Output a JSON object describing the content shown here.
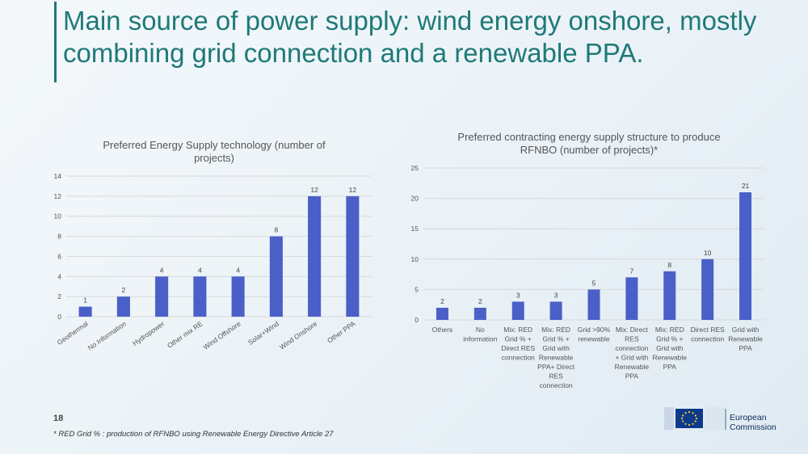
{
  "slide": {
    "title": "Main source of power supply: wind energy onshore, mostly combining grid connection and a renewable PPA.",
    "number": "18",
    "footnote": "* RED Grid % : production of RFNBO using Renewable Energy Directive Article 27",
    "logo": {
      "line1": "European",
      "line2": "Commission"
    }
  },
  "colors": {
    "bar": "#4a5fc7",
    "title": "#1e7a78",
    "grid": "#d8d8d8"
  },
  "chart_data": [
    {
      "type": "bar",
      "title_lines": [
        "Preferred Energy Supply technology (number of",
        "projects)"
      ],
      "categories": [
        "Geothermal",
        "No Information",
        "Hydropower",
        "Other mix RE",
        "Wind Offshore",
        "Solar+Wind",
        "Wind Onshore",
        "Other PPA"
      ],
      "values": [
        1,
        2,
        4,
        4,
        4,
        8,
        12,
        12
      ],
      "ylim": [
        0,
        14
      ],
      "yticks": [
        0,
        2,
        4,
        6,
        8,
        10,
        12,
        14
      ],
      "grid": true
    },
    {
      "type": "bar",
      "title_lines": [
        "Preferred contracting energy supply structure to produce",
        "RFNBO  (number of projects)*"
      ],
      "categories": [
        [
          "Others"
        ],
        [
          "No",
          "information"
        ],
        [
          "Mix: RED",
          "Grid % +",
          "Direct RES",
          "connection"
        ],
        [
          "Mix: RED",
          "Grid % +",
          "Grid with",
          "Renewable",
          "PPA+ Direct",
          "RES",
          "connection"
        ],
        [
          "Grid >90%",
          "renewable"
        ],
        [
          "Mix: Direct",
          "RES",
          "connection",
          "+ Grid with",
          "Renewable",
          "PPA"
        ],
        [
          "Mix: RED",
          "Grid % +",
          "Grid with",
          "Renewable",
          "PPA"
        ],
        [
          "Direct RES",
          "connection"
        ],
        [
          "Grid with",
          "Renewable",
          "PPA"
        ]
      ],
      "values": [
        2,
        2,
        3,
        3,
        5,
        7,
        8,
        10,
        21
      ],
      "ylim": [
        0,
        25
      ],
      "yticks": [
        0,
        5,
        10,
        15,
        20,
        25
      ],
      "grid": true
    }
  ]
}
